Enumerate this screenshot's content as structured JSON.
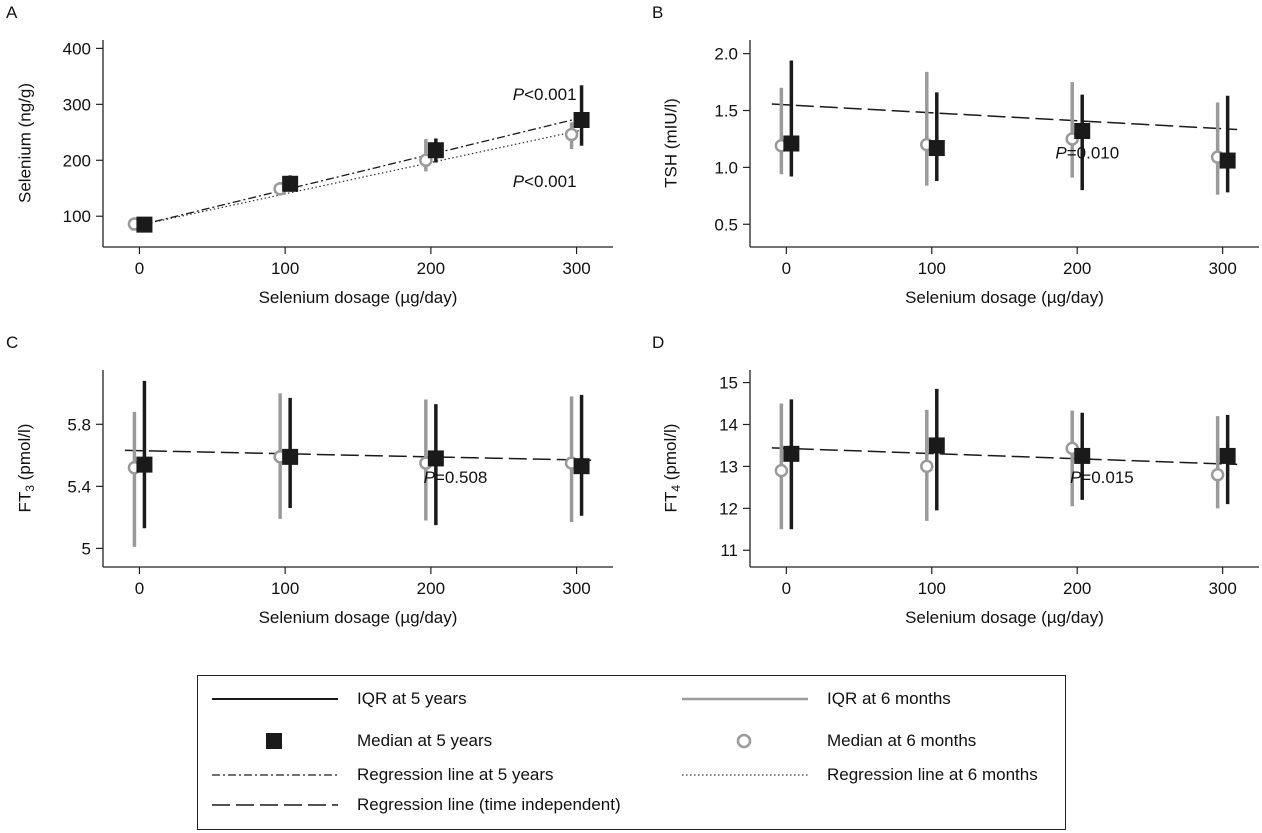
{
  "chart_data": [
    {
      "panel_letter": "A",
      "type": "scatter",
      "xlabel": "Selenium dosage (µg/day)",
      "ylabel": "Selenium (ng/g)",
      "xlim": [
        -25,
        325
      ],
      "ylim": [
        45,
        415
      ],
      "xticks": [
        0,
        100,
        200,
        300
      ],
      "yticks": [
        100,
        200,
        300,
        400
      ],
      "ytick_labels": [
        "100",
        "200",
        "300",
        "400"
      ],
      "six_months": {
        "dosage": [
          0,
          100,
          200,
          300
        ],
        "median": [
          86,
          149,
          200,
          246
        ],
        "q1": [
          81,
          139,
          180,
          220
        ],
        "q3": [
          92,
          161,
          238,
          268
        ]
      },
      "five_years": {
        "dosage": [
          0,
          100,
          200,
          300
        ],
        "median": [
          85,
          158,
          218,
          272
        ],
        "q1": [
          79,
          144,
          196,
          226
        ],
        "q3": [
          92,
          173,
          239,
          334
        ]
      },
      "regression_5y": [
        84,
        274
      ],
      "regression_6m": [
        84,
        252
      ],
      "regression_ti": null,
      "p_values": [
        {
          "italic": "P",
          "rest": "<0.001",
          "x": 300,
          "y": 308,
          "anchor": "end"
        },
        {
          "italic": "P",
          "rest": "<0.001",
          "x": 300,
          "y": 152,
          "anchor": "end"
        }
      ]
    },
    {
      "panel_letter": "B",
      "type": "scatter",
      "xlabel": "Selenium dosage (µg/day)",
      "ylabel": "TSH (mIU/l)",
      "xlim": [
        -25,
        325
      ],
      "ylim": [
        0.3,
        2.12
      ],
      "xticks": [
        0,
        100,
        200,
        300
      ],
      "yticks": [
        0.5,
        1.0,
        1.5,
        2.0
      ],
      "ytick_labels": [
        "0.5",
        "1.0",
        "1.5",
        "2.0"
      ],
      "six_months": {
        "dosage": [
          0,
          100,
          200,
          300
        ],
        "median": [
          1.19,
          1.2,
          1.25,
          1.09
        ],
        "q1": [
          0.94,
          0.84,
          0.91,
          0.76
        ],
        "q3": [
          1.7,
          1.84,
          1.75,
          1.57
        ]
      },
      "five_years": {
        "dosage": [
          0,
          100,
          200,
          300
        ],
        "median": [
          1.21,
          1.17,
          1.32,
          1.06
        ],
        "q1": [
          0.92,
          0.88,
          0.8,
          0.78
        ],
        "q3": [
          1.94,
          1.66,
          1.64,
          1.63
        ]
      },
      "regression_5y": null,
      "regression_6m": null,
      "regression_ti": [
        1.55,
        1.34
      ],
      "p_values": [
        {
          "italic": "P",
          "rest": "=0.010",
          "x": 185,
          "y": 1.08,
          "anchor": "start"
        }
      ]
    },
    {
      "panel_letter": "C",
      "type": "scatter",
      "xlabel": "Selenium dosage (µg/day)",
      "ylabel": "FT",
      "ylabel_sub": "3",
      "ylabel_rest": " (pmol/l)",
      "xlim": [
        -25,
        325
      ],
      "ylim": [
        4.88,
        6.15
      ],
      "xticks": [
        0,
        100,
        200,
        300
      ],
      "yticks": [
        5.0,
        5.4,
        5.8
      ],
      "ytick_labels": [
        "5",
        "5.4",
        "5.8"
      ],
      "six_months": {
        "dosage": [
          0,
          100,
          200,
          300
        ],
        "median": [
          5.52,
          5.59,
          5.55,
          5.55
        ],
        "q1": [
          5.01,
          5.19,
          5.18,
          5.17
        ],
        "q3": [
          5.88,
          6.0,
          5.96,
          5.98
        ]
      },
      "five_years": {
        "dosage": [
          0,
          100,
          200,
          300
        ],
        "median": [
          5.54,
          5.59,
          5.58,
          5.53
        ],
        "q1": [
          5.13,
          5.26,
          5.15,
          5.21
        ],
        "q3": [
          6.08,
          5.97,
          5.93,
          5.99
        ]
      },
      "regression_5y": null,
      "regression_6m": null,
      "regression_ti": [
        5.63,
        5.57
      ],
      "p_values": [
        {
          "italic": "P",
          "rest": "=0.508",
          "x": 195,
          "y": 5.42,
          "anchor": "start"
        }
      ]
    },
    {
      "panel_letter": "D",
      "type": "scatter",
      "xlabel": "Selenium dosage (µg/day)",
      "ylabel": "FT",
      "ylabel_sub": "4",
      "ylabel_rest": " (pmol/l)",
      "xlim": [
        -25,
        325
      ],
      "ylim": [
        10.6,
        15.3
      ],
      "xticks": [
        0,
        100,
        200,
        300
      ],
      "yticks": [
        11,
        12,
        13,
        14,
        15
      ],
      "ytick_labels": [
        "11",
        "12",
        "13",
        "14",
        "15"
      ],
      "six_months": {
        "dosage": [
          0,
          100,
          200,
          300
        ],
        "median": [
          12.9,
          13.0,
          13.43,
          12.8
        ],
        "q1": [
          11.5,
          11.7,
          12.05,
          12.0
        ],
        "q3": [
          14.5,
          14.35,
          14.33,
          14.2
        ]
      },
      "five_years": {
        "dosage": [
          0,
          100,
          200,
          300
        ],
        "median": [
          13.3,
          13.5,
          13.25,
          13.25
        ],
        "q1": [
          11.5,
          11.95,
          12.2,
          12.1
        ],
        "q3": [
          14.6,
          14.85,
          14.28,
          14.23
        ]
      },
      "regression_5y": null,
      "regression_6m": null,
      "regression_ti": [
        13.43,
        13.06
      ],
      "p_values": [
        {
          "italic": "P",
          "rest": "=0.015",
          "x": 195,
          "y": 12.6,
          "anchor": "start"
        }
      ]
    }
  ],
  "legend": {
    "items": [
      {
        "key": "iqr_5y",
        "label": "IQR at 5 years"
      },
      {
        "key": "iqr_6m",
        "label": "IQR at 6 months"
      },
      {
        "key": "median_5y",
        "label": "Median at 5 years"
      },
      {
        "key": "median_6m",
        "label": "Median at 6 months"
      },
      {
        "key": "reg_5y",
        "label": "Regression line at 5 years"
      },
      {
        "key": "reg_6m",
        "label": "Regression line at 6 months"
      },
      {
        "key": "reg_ti",
        "label": "Regression line (time independent)"
      }
    ]
  },
  "colors": {
    "five_years": "#1a1a1a",
    "six_months": "#9a9a9a",
    "axis": "#222222"
  }
}
